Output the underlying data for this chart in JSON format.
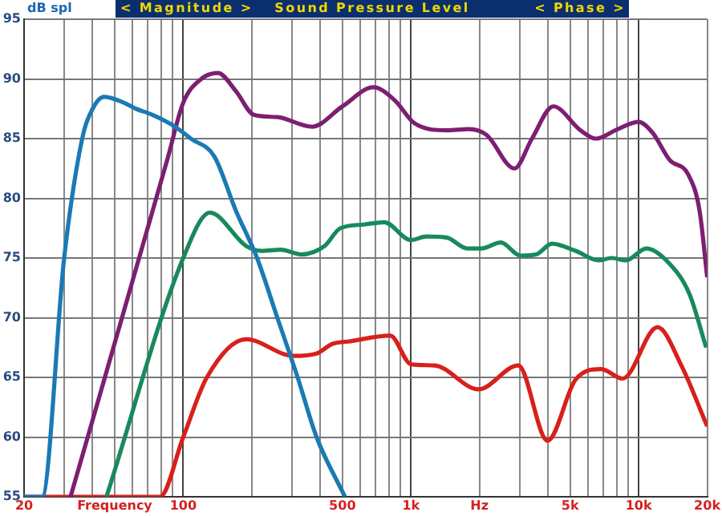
{
  "chart_data": {
    "type": "line",
    "title": "Sound Pressure Level",
    "annotations": [
      "< Magnitude >",
      "< Phase >"
    ],
    "ylabel": "dB spl",
    "log": "x",
    "grid": true,
    "legend": false,
    "marker": "none",
    "line_style": "solid",
    "xlim": [
      20,
      20000
    ],
    "ylim": [
      55,
      95
    ],
    "xticks": [
      20,
      {
        "value": 30,
        "label": null
      },
      {
        "value": 40,
        "label": null
      },
      {
        "value": 50,
        "label": "Frequency"
      },
      {
        "value": 60,
        "label": null
      },
      {
        "value": 70,
        "label": null
      },
      {
        "value": 80,
        "label": null
      },
      {
        "value": 90,
        "label": null
      },
      100,
      {
        "value": 200,
        "label": null
      },
      {
        "value": 300,
        "label": null
      },
      {
        "value": 400,
        "label": null
      },
      500,
      {
        "value": 600,
        "label": null
      },
      {
        "value": 700,
        "label": null
      },
      {
        "value": 800,
        "label": null
      },
      {
        "value": 900,
        "label": null
      },
      {
        "value": 1000,
        "label": "1k"
      },
      {
        "value": 2000,
        "label": "Hz"
      },
      {
        "value": 3000,
        "label": null
      },
      {
        "value": 4000,
        "label": null
      },
      {
        "value": 5000,
        "label": "5k"
      },
      {
        "value": 6000,
        "label": null
      },
      {
        "value": 7000,
        "label": null
      },
      {
        "value": 8000,
        "label": null
      },
      {
        "value": 9000,
        "label": null
      },
      {
        "value": 10000,
        "label": "10k"
      },
      {
        "value": 20000,
        "label": "20k"
      }
    ],
    "yticks": [
      55,
      60,
      65,
      70,
      75,
      80,
      85,
      90,
      95
    ],
    "series": [
      {
        "color": "#1a7ab4",
        "x": [
          20,
          24,
          30,
          36,
          40,
          45,
          55,
          62,
          73,
          92,
          108,
          137,
          170,
          211,
          259,
          318,
          385,
          513
        ],
        "values": [
          55,
          55,
          75,
          85,
          87.5,
          88.5,
          88,
          87.5,
          87,
          86,
          85,
          83.5,
          79,
          75,
          70,
          65,
          60,
          55
        ]
      },
      {
        "color": "#7c1f72",
        "x": [
          32,
          85,
          100,
          120,
          142,
          170,
          204,
          259,
          368,
          500,
          684,
          850,
          1034,
          1440,
          1800,
          2150,
          2850,
          3400,
          4220,
          5550,
          6500,
          8100,
          9990,
          11500,
          13700,
          16500,
          18500,
          20000
        ],
        "values": [
          55,
          83.2,
          88,
          90,
          90.5,
          89,
          87,
          86.8,
          86,
          87.7,
          89.3,
          88.2,
          86.3,
          85.7,
          85.8,
          85.3,
          82.5,
          85,
          87.7,
          85.7,
          85,
          85.8,
          86.4,
          85.5,
          83.2,
          82,
          79,
          73.4
        ]
      },
      {
        "color": "#178a5c",
        "x": [
          46,
          100,
          131,
          189,
          221,
          268,
          329,
          417,
          490,
          621,
          763,
          1000,
          1170,
          1440,
          1770,
          2040,
          2480,
          3030,
          3550,
          4160,
          5280,
          6670,
          7600,
          8800,
          10800,
          13700,
          16700,
          19800
        ],
        "values": [
          55,
          75,
          78.8,
          76,
          75.6,
          75.7,
          75.3,
          76,
          77.5,
          77.8,
          78,
          76.5,
          76.8,
          76.7,
          75.8,
          75.8,
          76.3,
          75.2,
          75.3,
          76.2,
          75.6,
          74.8,
          75,
          74.8,
          75.8,
          74.5,
          72,
          67.5
        ]
      },
      {
        "color": "#d8201c",
        "x": [
          20,
          79,
          100,
          127,
          189,
          304,
          385,
          451,
          530,
          811,
          1000,
          1270,
          1980,
          2960,
          3980,
          5280,
          6840,
          8500,
          12100,
          15400,
          20000
        ],
        "values": [
          55,
          55,
          60,
          65,
          68.2,
          66.8,
          67,
          67.8,
          68,
          68.5,
          66.1,
          66,
          64,
          66,
          59.7,
          64.8,
          65.7,
          64.9,
          69.2,
          66,
          60.9
        ]
      }
    ]
  }
}
